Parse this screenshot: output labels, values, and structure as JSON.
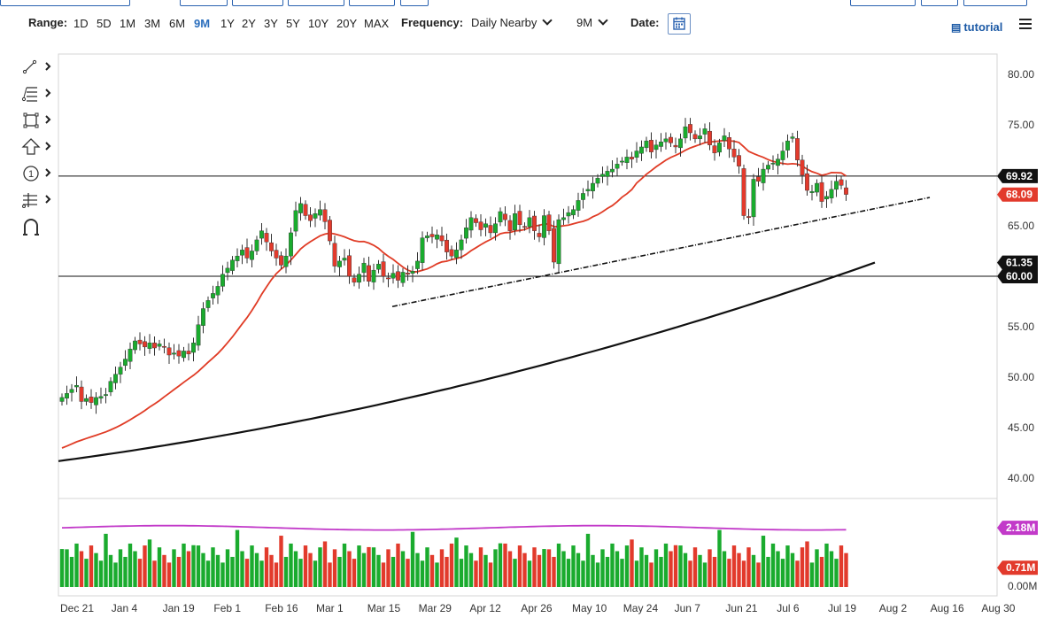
{
  "toolbar": {
    "range_label": "Range:",
    "ranges": [
      "1D",
      "5D",
      "1M",
      "3M",
      "6M",
      "9M",
      "1Y",
      "2Y",
      "3Y",
      "5Y",
      "10Y",
      "20Y",
      "MAX"
    ],
    "active_range": "9M",
    "frequency_label": "Frequency:",
    "frequency_value": "Daily Nearby",
    "period_value": "9M",
    "date_label": "Date:",
    "tutorial_label": "tutorial"
  },
  "side_tools": [
    "line-tool-icon",
    "fibonacci-tool-icon",
    "rectangle-tool-icon",
    "arrow-tool-icon",
    "annotation-tool-icon",
    "measure-tool-icon",
    "magnet-icon"
  ],
  "colors": {
    "up": "#1aab2e",
    "down": "#e23a2c",
    "ma_short": "#e03c26",
    "ma_long": "#111111",
    "volume_avg": "#c23ac9",
    "accent": "#2a6ebd"
  },
  "chart_data": {
    "type": "candlestick",
    "title": "",
    "price_axis": {
      "ticks": [
        "80.00",
        "75.00",
        "70.00",
        "65.00",
        "60.00",
        "55.00",
        "50.00",
        "45.00",
        "40.00"
      ],
      "ylim": [
        38.0,
        82.0
      ]
    },
    "volume_axis": {
      "ticks": [
        "0.00M"
      ],
      "ylim": [
        0,
        3.0
      ]
    },
    "x_axis": {
      "ticks": [
        "Dec 21",
        "Jan 4",
        "Jan 19",
        "Feb 1",
        "Feb 16",
        "Mar 1",
        "Mar 15",
        "Mar 29",
        "Apr 12",
        "Apr 26",
        "May 10",
        "May 24",
        "Jun 7",
        "Jun 21",
        "Jul 6",
        "Jul 19",
        "Aug 2",
        "Aug 16",
        "Aug 30"
      ]
    },
    "price_labels": [
      {
        "value": "69.92",
        "role": "horizontal-line"
      },
      {
        "value": "68.09",
        "role": "last-price"
      },
      {
        "value": "61.35",
        "role": "long-ma"
      },
      {
        "value": "60.00",
        "role": "horizontal-line"
      }
    ],
    "volume_labels": [
      {
        "value": "2.18M",
        "role": "volume-average"
      },
      {
        "value": "0.71M",
        "role": "last-volume"
      }
    ],
    "horizontal_lines": [
      69.92,
      60.0
    ],
    "trendline": {
      "start": [
        "Mar 22",
        57.0
      ],
      "end": [
        "Aug 24",
        67.8
      ]
    },
    "candles_close": [
      48.0,
      48.4,
      48.8,
      49.2,
      47.6,
      47.9,
      47.5,
      48.0,
      48.1,
      48.3,
      49.6,
      50.3,
      51.0,
      51.8,
      52.8,
      53.6,
      53.3,
      53.0,
      53.4,
      52.9,
      53.3,
      53.0,
      52.2,
      52.4,
      52.1,
      52.6,
      52.3,
      53.4,
      55.2,
      56.8,
      57.6,
      58.3,
      59.0,
      60.2,
      60.8,
      61.6,
      62.0,
      62.6,
      61.8,
      62.5,
      63.6,
      64.5,
      63.4,
      62.5,
      61.8,
      61.1,
      62.0,
      64.3,
      66.5,
      67.2,
      66.0,
      65.5,
      66.2,
      66.6,
      65.4,
      63.5,
      61.0,
      61.5,
      61.8,
      60.0,
      59.4,
      60.2,
      61.3,
      59.5,
      60.6,
      61.2,
      60.0,
      59.8,
      60.3,
      59.6,
      60.4,
      60.2,
      60.5,
      61.5,
      63.8,
      64.0,
      63.9,
      64.1,
      63.5,
      62.4,
      62.0,
      62.6,
      63.6,
      64.8,
      65.8,
      65.3,
      64.6,
      65.2,
      64.3,
      65.2,
      66.4,
      65.6,
      64.5,
      66.2,
      65.1,
      64.9,
      65.8,
      64.5,
      63.9,
      66.0,
      64.5,
      61.4,
      65.6,
      65.8,
      66.3,
      66.6,
      67.5,
      68.2,
      68.6,
      69.2,
      69.7,
      70.1,
      70.4,
      70.6,
      71.1,
      71.4,
      71.8,
      71.6,
      72.4,
      72.8,
      73.4,
      72.3,
      73.0,
      73.3,
      73.6,
      73.2,
      72.8,
      73.6,
      74.8,
      74.2,
      73.6,
      73.9,
      74.6,
      73.0,
      72.2,
      73.2,
      73.9,
      72.6,
      71.8,
      70.9,
      66.0,
      65.8,
      69.6,
      69.4,
      70.6,
      71.0,
      71.2,
      71.6,
      72.4,
      73.4,
      73.8,
      71.5,
      70.0,
      68.5,
      68.4,
      69.2,
      67.4,
      67.9,
      68.6,
      69.4,
      69.0,
      68.1
    ],
    "ma_short": {
      "start": 43.0,
      "end": 69.92
    },
    "ma_long": {
      "start": 41.7,
      "end": 61.35
    }
  }
}
